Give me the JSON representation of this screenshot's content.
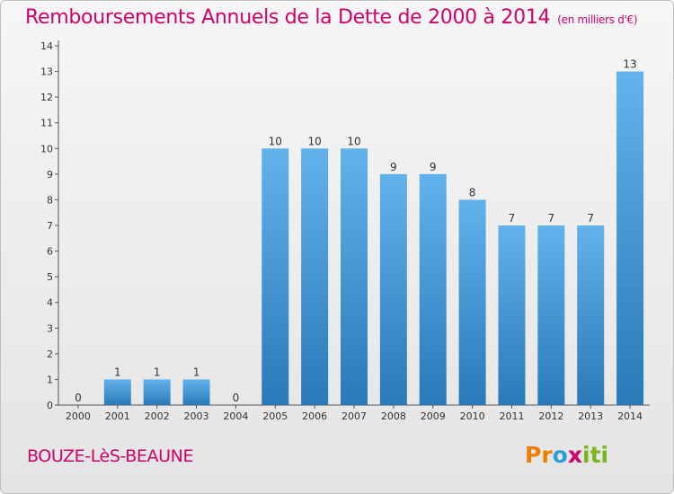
{
  "title": "Remboursements Annuels de la Dette de 2000 à 2014",
  "unit_label": "(en milliers d'€)",
  "commune": "BOUZE-LèS-BEAUNE",
  "logo": {
    "text": "Proxiti",
    "letters": [
      "P",
      "r",
      "o",
      "x",
      "i",
      "t",
      "i"
    ],
    "colors": [
      "#ef7d00",
      "#ef7d00",
      "#2b9ed8",
      "#d2006b",
      "#7ab51d",
      "#7ab51d",
      "#7ab51d"
    ]
  },
  "colors": {
    "accent": "#d2006b",
    "bar_light": "#63b2ec",
    "bar_dark": "#2a79b8"
  },
  "chart_data": {
    "type": "bar",
    "title": "Remboursements Annuels de la Dette de 2000 à 2014",
    "xlabel": "",
    "ylabel": "",
    "categories": [
      "2000",
      "2001",
      "2002",
      "2003",
      "2004",
      "2005",
      "2006",
      "2007",
      "2008",
      "2009",
      "2010",
      "2011",
      "2012",
      "2013",
      "2014"
    ],
    "values": [
      0,
      1,
      1,
      1,
      0,
      10,
      10,
      10,
      9,
      9,
      8,
      7,
      7,
      7,
      13
    ],
    "value_labels": [
      "0",
      "1",
      "1",
      "1",
      "0",
      "10",
      "10",
      "10",
      "9",
      "9",
      "8",
      "7",
      "7",
      "7",
      "13"
    ],
    "yticks": [
      0,
      1,
      2,
      3,
      4,
      5,
      6,
      7,
      8,
      9,
      10,
      11,
      12,
      13,
      14
    ],
    "ylim": [
      0,
      14
    ],
    "grid": false,
    "legend": "none"
  }
}
